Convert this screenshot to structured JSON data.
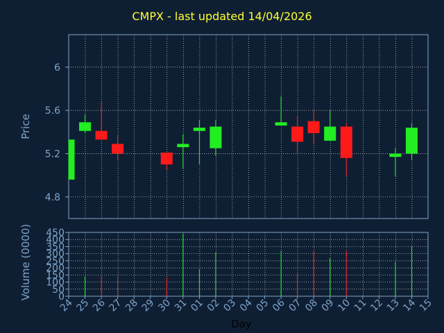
{
  "chart_data": {
    "title": "CMPX - last updated 14/04/2026",
    "type": "candlestick",
    "price_panel": {
      "ylabel": "Price",
      "ylim": [
        4.6,
        6.3
      ],
      "yticks": [
        "4.8",
        "5.2",
        "5.6",
        "6"
      ]
    },
    "volume_panel": {
      "ylabel": "Volume (0000)",
      "ylim": [
        0,
        450
      ],
      "yticks": [
        "0",
        "50",
        "100",
        "150",
        "200",
        "250",
        "300",
        "350",
        "400",
        "450"
      ]
    },
    "xlabel": "Day",
    "x_ticks": [
      "24",
      "25",
      "26",
      "27",
      "28",
      "29",
      "30",
      "31",
      "01",
      "02",
      "03",
      "04",
      "05",
      "06",
      "07",
      "08",
      "09",
      "10",
      "11",
      "12",
      "13",
      "14",
      "15"
    ],
    "candles": [
      {
        "day": "24",
        "open": 4.96,
        "high": 5.33,
        "low": 4.96,
        "close": 5.33,
        "volume": 0
      },
      {
        "day": "25",
        "open": 5.41,
        "high": 5.56,
        "low": 5.39,
        "close": 5.49,
        "volume": 140
      },
      {
        "day": "26",
        "open": 5.41,
        "high": 5.68,
        "low": 5.33,
        "close": 5.33,
        "volume": 140
      },
      {
        "day": "27",
        "open": 5.29,
        "high": 5.37,
        "low": 5.14,
        "close": 5.2,
        "volume": 140
      },
      {
        "day": "30",
        "open": 5.21,
        "high": 5.21,
        "low": 5.05,
        "close": 5.1,
        "volume": 130
      },
      {
        "day": "31",
        "open": 5.26,
        "high": 5.38,
        "low": 5.06,
        "close": 5.29,
        "volume": 440
      },
      {
        "day": "01",
        "open": 5.41,
        "high": 5.51,
        "low": 5.1,
        "close": 5.44,
        "volume": 190
      },
      {
        "day": "02",
        "open": 5.25,
        "high": 5.51,
        "low": 5.18,
        "close": 5.45,
        "volume": 310
      },
      {
        "day": "06",
        "open": 5.46,
        "high": 5.73,
        "low": 5.46,
        "close": 5.49,
        "volume": 320
      },
      {
        "day": "07",
        "open": 5.45,
        "high": 5.55,
        "low": 5.2,
        "close": 5.31,
        "volume": 160
      },
      {
        "day": "08",
        "open": 5.5,
        "high": 5.6,
        "low": 5.29,
        "close": 5.39,
        "volume": 320
      },
      {
        "day": "09",
        "open": 5.32,
        "high": 5.6,
        "low": 5.32,
        "close": 5.45,
        "volume": 270
      },
      {
        "day": "10",
        "open": 5.45,
        "high": 5.48,
        "low": 4.99,
        "close": 5.16,
        "volume": 320
      },
      {
        "day": "13",
        "open": 5.17,
        "high": 5.25,
        "low": 4.99,
        "close": 5.2,
        "volume": 240
      },
      {
        "day": "14",
        "open": 5.2,
        "high": 5.48,
        "low": 5.14,
        "close": 5.44,
        "volume": 350
      }
    ],
    "colors": {
      "background": "#0f1f33",
      "grid": "#ffffff",
      "axis": "#7fa4c9",
      "up": "#22ee22",
      "down": "#ff1a1a",
      "title": "#ffff33"
    },
    "grid": true
  }
}
